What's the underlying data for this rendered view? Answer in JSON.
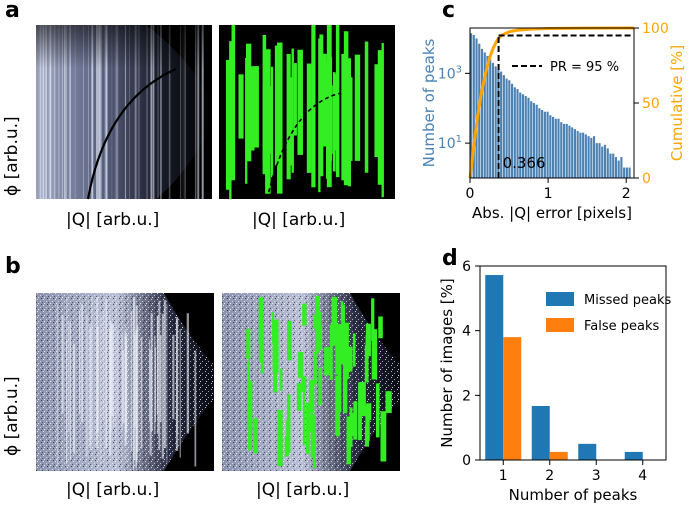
{
  "panels": {
    "a": {
      "letter": "a",
      "y_label": "ϕ [arb.u.]",
      "x_label_left": "|Q| [arb.u.]",
      "x_label_right": "|Q| [arb.u.]"
    },
    "b": {
      "letter": "b",
      "y_label": "ϕ [arb.u.]",
      "x_label_left": "|Q| [arb.u.]",
      "x_label_right": "|Q| [arb.u.]"
    },
    "c": {
      "letter": "c"
    },
    "d": {
      "letter": "d"
    }
  },
  "colors": {
    "histogram_blue": "#4b82b3",
    "cumulative_orange": "#ffa500",
    "bar_blue": "#1f77b4",
    "bar_orange": "#ff7f0e",
    "detector_green": "#33ee22",
    "detector_bg": "#000000"
  },
  "chart_data": [
    {
      "id": "c",
      "type": "bar",
      "xlabel": "Abs. |Q| error [pixels]",
      "ylabel": "Number of peaks",
      "ylabel_right": "Cumulative [%]",
      "xlim": [
        0,
        2.1
      ],
      "ylim_log_exponent": [
        0,
        4.3
      ],
      "y_scale": "log",
      "x_ticks": [
        "0",
        "1",
        "2"
      ],
      "y_ticks": [
        {
          "base": "10",
          "exp": "1",
          "value": 1
        },
        {
          "base": "10",
          "exp": "3",
          "value": 3
        }
      ],
      "y2_ticks": [
        "0",
        "50",
        "100"
      ],
      "y2lim": [
        0,
        100
      ],
      "bin_width": 0.035,
      "histogram_log10_counts": [
        4.15,
        4.1,
        4.0,
        3.85,
        3.7,
        3.6,
        3.5,
        3.4,
        3.3,
        3.2,
        3.1,
        3.05,
        2.95,
        2.85,
        2.8,
        2.7,
        2.6,
        2.55,
        2.45,
        2.4,
        2.35,
        2.3,
        2.2,
        2.15,
        2.1,
        2.0,
        1.95,
        1.9,
        1.9,
        1.8,
        1.75,
        1.7,
        1.7,
        1.6,
        1.55,
        1.55,
        1.5,
        1.45,
        1.4,
        1.35,
        1.3,
        1.3,
        1.25,
        1.2,
        1.15,
        1.2,
        1.0,
        1.0,
        0.9,
        0.95,
        0.85,
        0.7,
        0.7,
        0.6,
        0.5,
        0.6,
        0.3,
        0.3,
        0.3,
        0.0
      ],
      "cumulative": {
        "name": "Cumulative",
        "x": [
          0,
          0.05,
          0.1,
          0.15,
          0.2,
          0.25,
          0.3,
          0.35,
          0.4,
          0.5,
          0.6,
          0.8,
          1.0,
          1.5,
          2.1
        ],
        "y": [
          0,
          22,
          42,
          58,
          70,
          80,
          87,
          92,
          95,
          97.5,
          98.5,
          99.3,
          99.7,
          99.9,
          100
        ]
      },
      "annotations": {
        "pr_legend": "PR =  95 %",
        "threshold_x": 0.366,
        "threshold_label": "0.366",
        "pr_level": 95
      }
    },
    {
      "id": "d",
      "type": "bar",
      "xlabel": "Number of peaks",
      "ylabel": "Number of images [%]",
      "categories": [
        "1",
        "2",
        "3",
        "4"
      ],
      "ylim": [
        0,
        6
      ],
      "y_ticks": [
        "0",
        "2",
        "4",
        "6"
      ],
      "legend_position": "top-right",
      "series": [
        {
          "name": "Missed peaks",
          "values": [
            5.72,
            1.67,
            0.5,
            0.25
          ]
        },
        {
          "name": "False peaks",
          "values": [
            3.8,
            0.25,
            0.0,
            0.0
          ]
        }
      ]
    }
  ]
}
